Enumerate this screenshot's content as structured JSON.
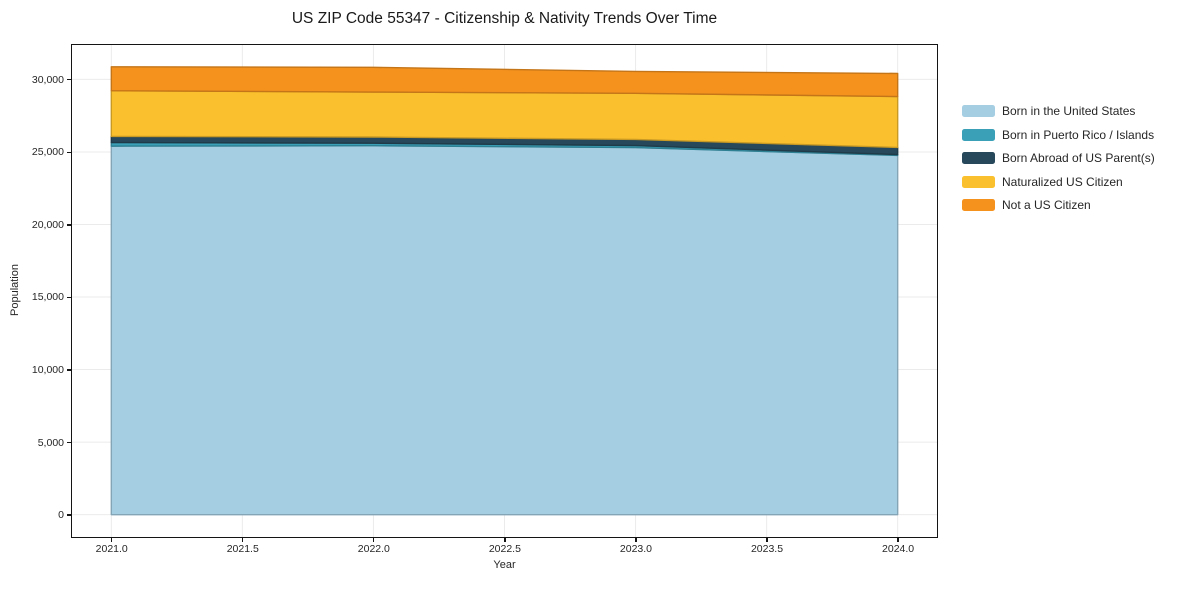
{
  "chart_data": {
    "type": "area",
    "stacked": true,
    "title": "US ZIP Code 55347 - Citizenship & Nativity Trends Over Time",
    "xlabel": "Year",
    "ylabel": "Population",
    "x": [
      2021,
      2022,
      2023,
      2024
    ],
    "series": [
      {
        "name": "Born in the United States",
        "color": "#a5cee3",
        "values": [
          25400,
          25430,
          25300,
          24760
        ]
      },
      {
        "name": "Born in Puerto Rico / Islands",
        "color": "#3aa0b8",
        "values": [
          250,
          170,
          140,
          60
        ]
      },
      {
        "name": "Born Abroad of US Parent(s)",
        "color": "#27485a",
        "values": [
          420,
          430,
          420,
          490
        ]
      },
      {
        "name": "Naturalized US Citizen",
        "color": "#fbc02d",
        "values": [
          3150,
          3100,
          3180,
          3510
        ]
      },
      {
        "name": "Not a US Citizen",
        "color": "#f5921e",
        "values": [
          1650,
          1700,
          1510,
          1590
        ]
      }
    ],
    "totals": [
      30870,
      30830,
      30550,
      30410
    ],
    "xlim": [
      2020.85,
      2024.15
    ],
    "ylim": [
      -1541,
      32371
    ],
    "xticks": {
      "values": [
        2021.0,
        2021.5,
        2022.0,
        2022.5,
        2023.0,
        2023.5,
        2024.0
      ],
      "labels": [
        "2021.0",
        "2021.5",
        "2022.0",
        "2022.5",
        "2023.0",
        "2023.5",
        "2024.0"
      ]
    },
    "yticks": {
      "values": [
        0,
        5000,
        10000,
        15000,
        20000,
        25000,
        30000
      ],
      "labels": [
        "0",
        "5,000",
        "10,000",
        "15,000",
        "20,000",
        "25,000",
        "30,000"
      ]
    },
    "grid": true,
    "grid_color": "#ebebeb",
    "legend_position": "right-outside"
  }
}
